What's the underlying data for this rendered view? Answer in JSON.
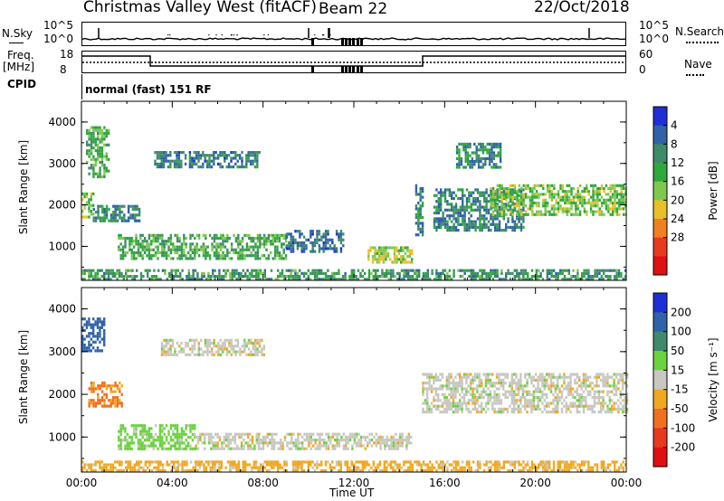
{
  "header": {
    "title": "Christmas Valley West (fitACF)",
    "beam": "Beam 22",
    "date": "22/Oct/2018"
  },
  "status_panels": {
    "nsky": {
      "label": "N.Sky",
      "tick_top": "10^5",
      "tick_bottom": "10^0"
    },
    "nsearch": {
      "label": "N.Search",
      "tick_top": "10^5",
      "tick_bottom": "10^0"
    },
    "freq": {
      "label_line1": "Freq.",
      "label_line2": "[MHz]",
      "tick_top": "18",
      "tick_bottom": "8"
    },
    "nave": {
      "label": "Nave",
      "tick_top": "60",
      "tick_bottom": "0"
    },
    "cpid": {
      "label": "CPID",
      "value": "normal (fast) 151 RF"
    }
  },
  "chart_data": [
    {
      "type": "heatmap",
      "name": "power",
      "ylabel": "Slant Range [km]",
      "xlim": [
        0,
        24
      ],
      "ylim": [
        180,
        4500
      ],
      "y_ticks": [
        1000,
        2000,
        3000,
        4000
      ],
      "colorbar": {
        "label": "Power [dB]",
        "ticks": [
          "4",
          "8",
          "12",
          "16",
          "20",
          "24",
          "28"
        ],
        "colors": [
          "#1f2fd6",
          "#2f62a8",
          "#3f8a6a",
          "#2fa83c",
          "#7fc850",
          "#e8c028",
          "#f08020",
          "#e83820",
          "#e01010"
        ]
      },
      "regions": [
        {
          "t0": 0.0,
          "t1": 0.5,
          "r0": 1700,
          "r1": 2300,
          "level": 18
        },
        {
          "t0": 0.2,
          "t1": 1.2,
          "r0": 2700,
          "r1": 3900,
          "level": 14
        },
        {
          "t0": 0.5,
          "t1": 2.6,
          "r0": 1650,
          "r1": 2000,
          "level": 10
        },
        {
          "t0": 1.6,
          "t1": 9.0,
          "r0": 700,
          "r1": 1300,
          "level": 14
        },
        {
          "t0": 3.2,
          "t1": 7.8,
          "r0": 2900,
          "r1": 3300,
          "level": 8
        },
        {
          "t0": 9.0,
          "t1": 11.5,
          "r0": 900,
          "r1": 1400,
          "level": 7
        },
        {
          "t0": 12.6,
          "t1": 14.6,
          "r0": 650,
          "r1": 1000,
          "level": 19
        },
        {
          "t0": 14.7,
          "t1": 15.0,
          "r0": 1300,
          "r1": 2500,
          "level": 10
        },
        {
          "t0": 15.5,
          "t1": 19.5,
          "r0": 1400,
          "r1": 2400,
          "level": 9
        },
        {
          "t0": 16.5,
          "t1": 18.5,
          "r0": 2900,
          "r1": 3500,
          "level": 10
        },
        {
          "t0": 18.0,
          "t1": 24.0,
          "r0": 1800,
          "r1": 2500,
          "level": 17
        },
        {
          "t0": 0.0,
          "t1": 24.0,
          "r0": 180,
          "r1": 450,
          "level": 12
        }
      ]
    },
    {
      "type": "heatmap",
      "name": "velocity",
      "ylabel": "Slant Range [km]",
      "xlabel": "Time UT",
      "xlim": [
        0,
        24
      ],
      "ylim": [
        180,
        4500
      ],
      "y_ticks": [
        1000,
        2000,
        3000,
        4000
      ],
      "x_tick_labels": [
        "00:00",
        "04:00",
        "08:00",
        "12:00",
        "16:00",
        "20:00",
        "00:00"
      ],
      "colorbar": {
        "label": "Velocity [m s⁻¹]",
        "ticks": [
          "200",
          "100",
          "50",
          "15",
          "-15",
          "-50",
          "-100",
          "-200"
        ],
        "colors": [
          "#1f2fd6",
          "#2f62a8",
          "#3f8a6a",
          "#6cd240",
          "#c8c8c0",
          "#f0a820",
          "#f07020",
          "#e83820",
          "#e01010"
        ]
      },
      "regions": [
        {
          "t0": 0.0,
          "t1": 1.0,
          "r0": 3000,
          "r1": 3800,
          "v": 150
        },
        {
          "t0": 0.3,
          "t1": 1.8,
          "r0": 1700,
          "r1": 2300,
          "v": -60
        },
        {
          "t0": 1.6,
          "t1": 5.0,
          "r0": 700,
          "r1": 1300,
          "v": 30
        },
        {
          "t0": 5.0,
          "t1": 14.5,
          "r0": 700,
          "r1": 1100,
          "v": 0
        },
        {
          "t0": 3.5,
          "t1": 8.0,
          "r0": 2900,
          "r1": 3300,
          "v": 0
        },
        {
          "t0": 15.0,
          "t1": 24.0,
          "r0": 1600,
          "r1": 2500,
          "v": 0
        },
        {
          "t0": 0.0,
          "t1": 24.0,
          "r0": 180,
          "r1": 450,
          "v": -30
        }
      ]
    }
  ]
}
